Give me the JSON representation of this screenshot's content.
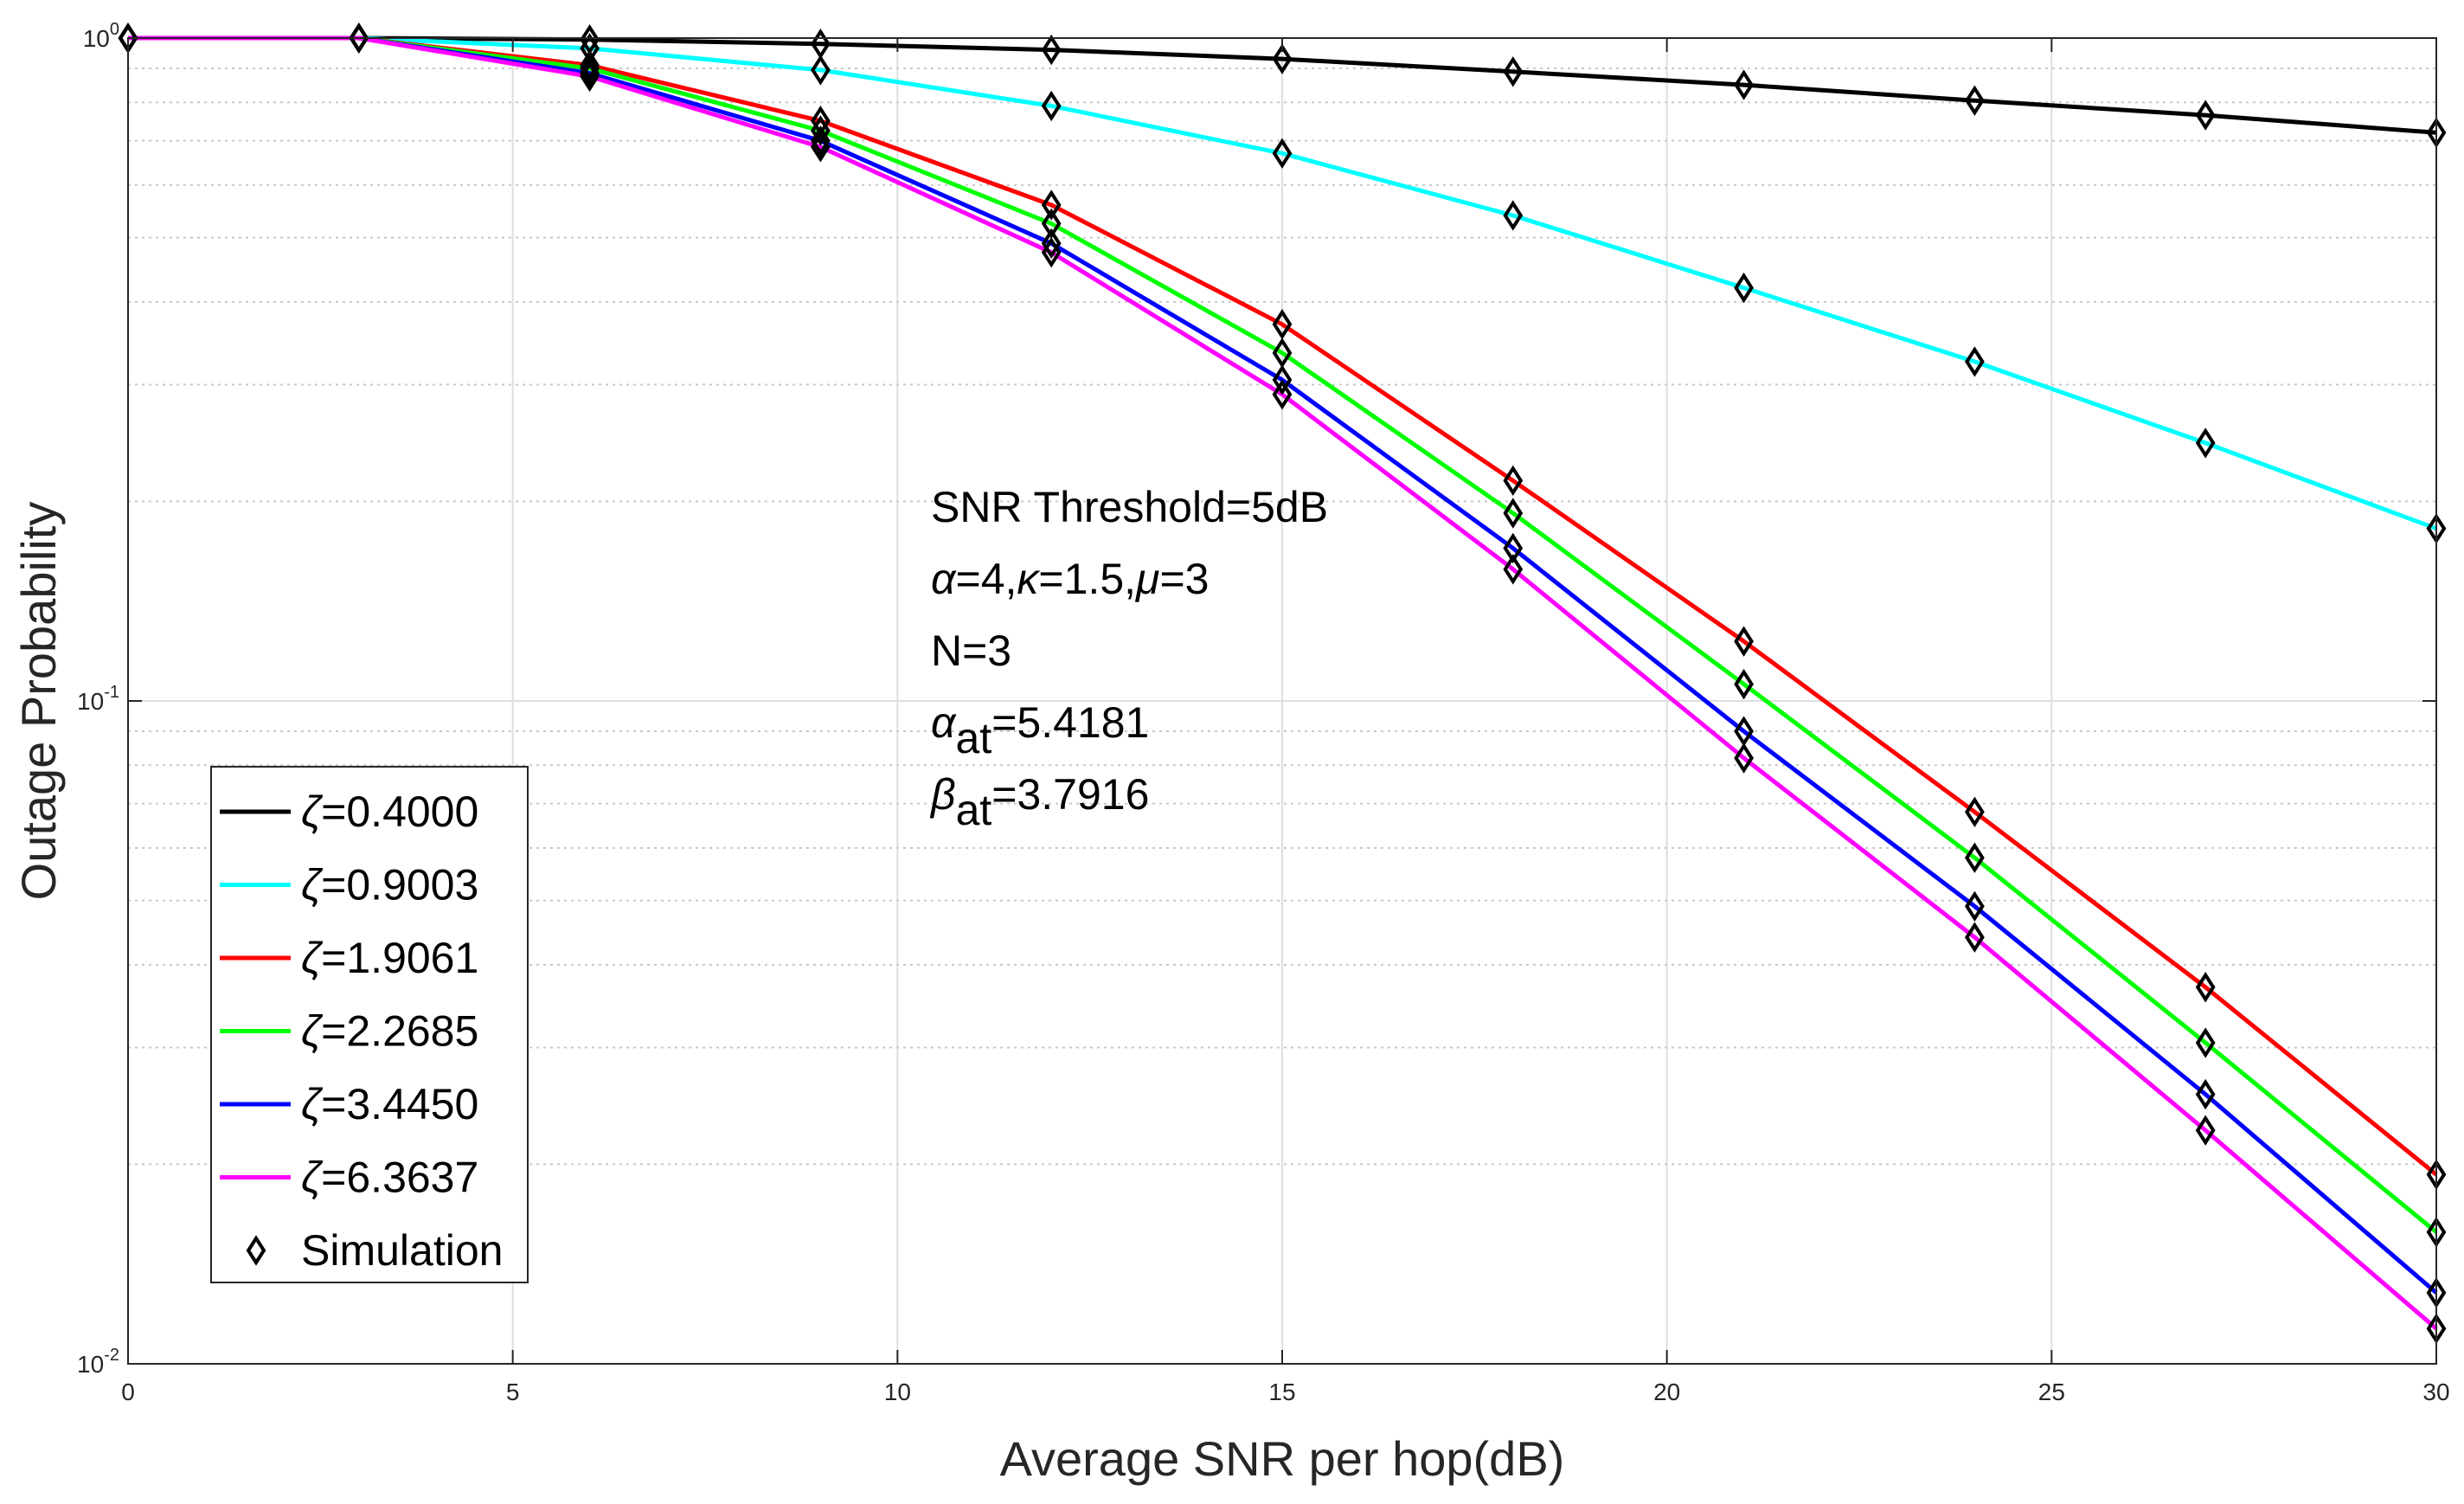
{
  "chart_data": {
    "type": "line",
    "yscale": "log",
    "xlabel": "Average SNR per hop(dB)",
    "ylabel": "Outage Probability",
    "xlim": [
      0,
      30
    ],
    "ylim": [
      0.01,
      1
    ],
    "grid": true,
    "xticks": [
      0,
      5,
      10,
      15,
      20,
      25,
      30
    ],
    "xtick_labels": [
      "0",
      "5",
      "10",
      "15",
      "20",
      "25",
      "30"
    ],
    "yticks": [
      {
        "value": 1,
        "base": "10",
        "exp": "0"
      },
      {
        "value": 0.1,
        "base": "10",
        "exp": "-1"
      },
      {
        "value": 0.01,
        "base": "10",
        "exp": "-2"
      }
    ],
    "x": [
      0,
      3,
      6,
      9,
      12,
      15,
      18,
      21,
      24,
      27,
      30
    ],
    "series": [
      {
        "name": "ζ=0.4000",
        "color": "#000000",
        "values": [
          1,
          1,
          0.995,
          0.98,
          0.96,
          0.93,
          0.89,
          0.85,
          0.805,
          0.765,
          0.72
        ]
      },
      {
        "name": "ζ=0.9003",
        "color": "#00ffff",
        "values": [
          1,
          1,
          0.965,
          0.895,
          0.79,
          0.67,
          0.54,
          0.42,
          0.325,
          0.245,
          0.182
        ]
      },
      {
        "name": "ζ=1.9061",
        "color": "#ff0000",
        "values": [
          1,
          1,
          0.91,
          0.75,
          0.56,
          0.37,
          0.215,
          0.123,
          0.068,
          0.037,
          0.0193
        ]
      },
      {
        "name": "ζ=2.2685",
        "color": "#00ff00",
        "values": [
          1,
          1,
          0.9,
          0.725,
          0.525,
          0.335,
          0.192,
          0.106,
          0.058,
          0.0305,
          0.0158
        ]
      },
      {
        "name": "ζ=3.4450",
        "color": "#0000ff",
        "values": [
          1,
          1,
          0.885,
          0.7,
          0.49,
          0.305,
          0.17,
          0.09,
          0.049,
          0.0255,
          0.0128
        ]
      },
      {
        "name": "ζ=6.3637",
        "color": "#ff00ff",
        "values": [
          1,
          1,
          0.875,
          0.685,
          0.475,
          0.29,
          0.158,
          0.082,
          0.044,
          0.0225,
          0.0113
        ]
      }
    ],
    "simulation": {
      "name": "Simulation",
      "marker": "diamond",
      "color": "#000000",
      "x": [
        0,
        3,
        6,
        9,
        12,
        15,
        18,
        21,
        24,
        27,
        30
      ]
    },
    "legend_position": "bottom-left",
    "annotations": [
      {
        "id": "threshold",
        "parts": [
          {
            "text": "SNR Threshold=5dB"
          }
        ]
      },
      {
        "id": "params",
        "parts": [
          {
            "text": "α",
            "italic": true
          },
          {
            "text": "=4,"
          },
          {
            "text": "κ",
            "italic": true
          },
          {
            "text": "=1.5,"
          },
          {
            "text": "μ",
            "italic": true
          },
          {
            "text": "=3"
          }
        ]
      },
      {
        "id": "n",
        "parts": [
          {
            "text": "N=3"
          }
        ]
      },
      {
        "id": "alpha-at",
        "parts": [
          {
            "text": "α",
            "italic": true
          },
          {
            "text": "at",
            "sub": true
          },
          {
            "text": "=5.4181"
          }
        ]
      },
      {
        "id": "beta-at",
        "parts": [
          {
            "text": "β",
            "italic": true
          },
          {
            "text": "at",
            "sub": true
          },
          {
            "text": "=3.7916"
          }
        ]
      }
    ]
  }
}
